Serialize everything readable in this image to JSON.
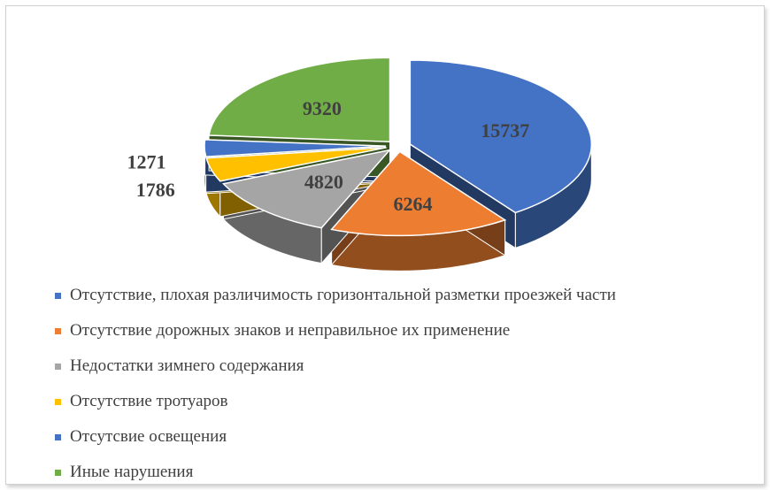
{
  "chart_data": {
    "type": "pie",
    "style": "3d-exploded",
    "categories": [
      "Отсутствие, плохая различимость горизонтальной разметки проезжей части",
      "Отсутствие дорожных знаков и неправильное их применение",
      "Недостатки зимнего содержания",
      "Отсутствие тротуаров",
      "Отсутсвие освещения",
      "Иные нарушения"
    ],
    "values": [
      15737,
      6264,
      4820,
      1786,
      1271,
      9320
    ],
    "data_labels": [
      "15737",
      "6264",
      "4820",
      "1786",
      "1271",
      "9320"
    ],
    "colors": [
      "#4472C4",
      "#ED7D31",
      "#A5A5A5",
      "#FFC000",
      "#4472C4",
      "#70AD47"
    ],
    "legend_position": "bottom-left"
  }
}
